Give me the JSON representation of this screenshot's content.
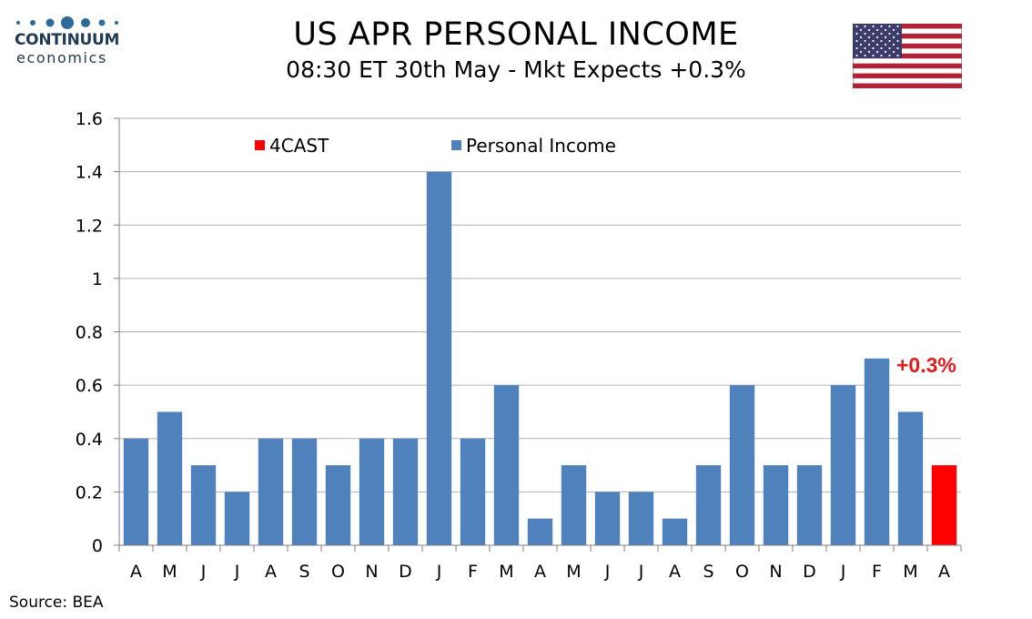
{
  "brand": {
    "line1": "CONTINUUM",
    "line2": "economics"
  },
  "header": {
    "title": "US APR PERSONAL INCOME",
    "subtitle": "08:30 ET 30th May - Mkt Expects +0.3%"
  },
  "footer": {
    "source": "Source: BEA"
  },
  "colors": {
    "actual": "#4f81bd",
    "forecast": "#ff0000",
    "annotation": "#e41a1c",
    "brand": "#1f3a52"
  },
  "icons": {
    "flag": "us-flag-icon"
  },
  "chart_data": {
    "type": "bar",
    "title": "US APR PERSONAL INCOME",
    "subtitle": "08:30 ET 30th May - Mkt Expects +0.3%",
    "categories": [
      "A",
      "M",
      "J",
      "J",
      "A",
      "S",
      "O",
      "N",
      "D",
      "J",
      "F",
      "M",
      "A",
      "M",
      "J",
      "J",
      "A",
      "S",
      "O",
      "N",
      "D",
      "J",
      "F",
      "M",
      "A"
    ],
    "series": [
      {
        "name": "4CAST",
        "color": "#ff0000",
        "values": [
          null,
          null,
          null,
          null,
          null,
          null,
          null,
          null,
          null,
          null,
          null,
          null,
          null,
          null,
          null,
          null,
          null,
          null,
          null,
          null,
          null,
          null,
          null,
          null,
          0.3
        ]
      },
      {
        "name": "Personal Income",
        "color": "#4f81bd",
        "values": [
          0.4,
          0.5,
          0.3,
          0.2,
          0.4,
          0.4,
          0.3,
          0.4,
          0.4,
          1.4,
          0.4,
          0.6,
          0.1,
          0.3,
          0.2,
          0.2,
          0.1,
          0.3,
          0.6,
          0.3,
          0.3,
          0.6,
          0.7,
          0.5,
          null
        ]
      }
    ],
    "ylim": [
      0,
      1.6
    ],
    "yticks": [
      0,
      0.2,
      0.4,
      0.6,
      0.8,
      1,
      1.2,
      1.4,
      1.6
    ],
    "grid": true,
    "legend": "top",
    "annotation": {
      "text": "+0.3%"
    },
    "xlabel": "",
    "ylabel": ""
  }
}
